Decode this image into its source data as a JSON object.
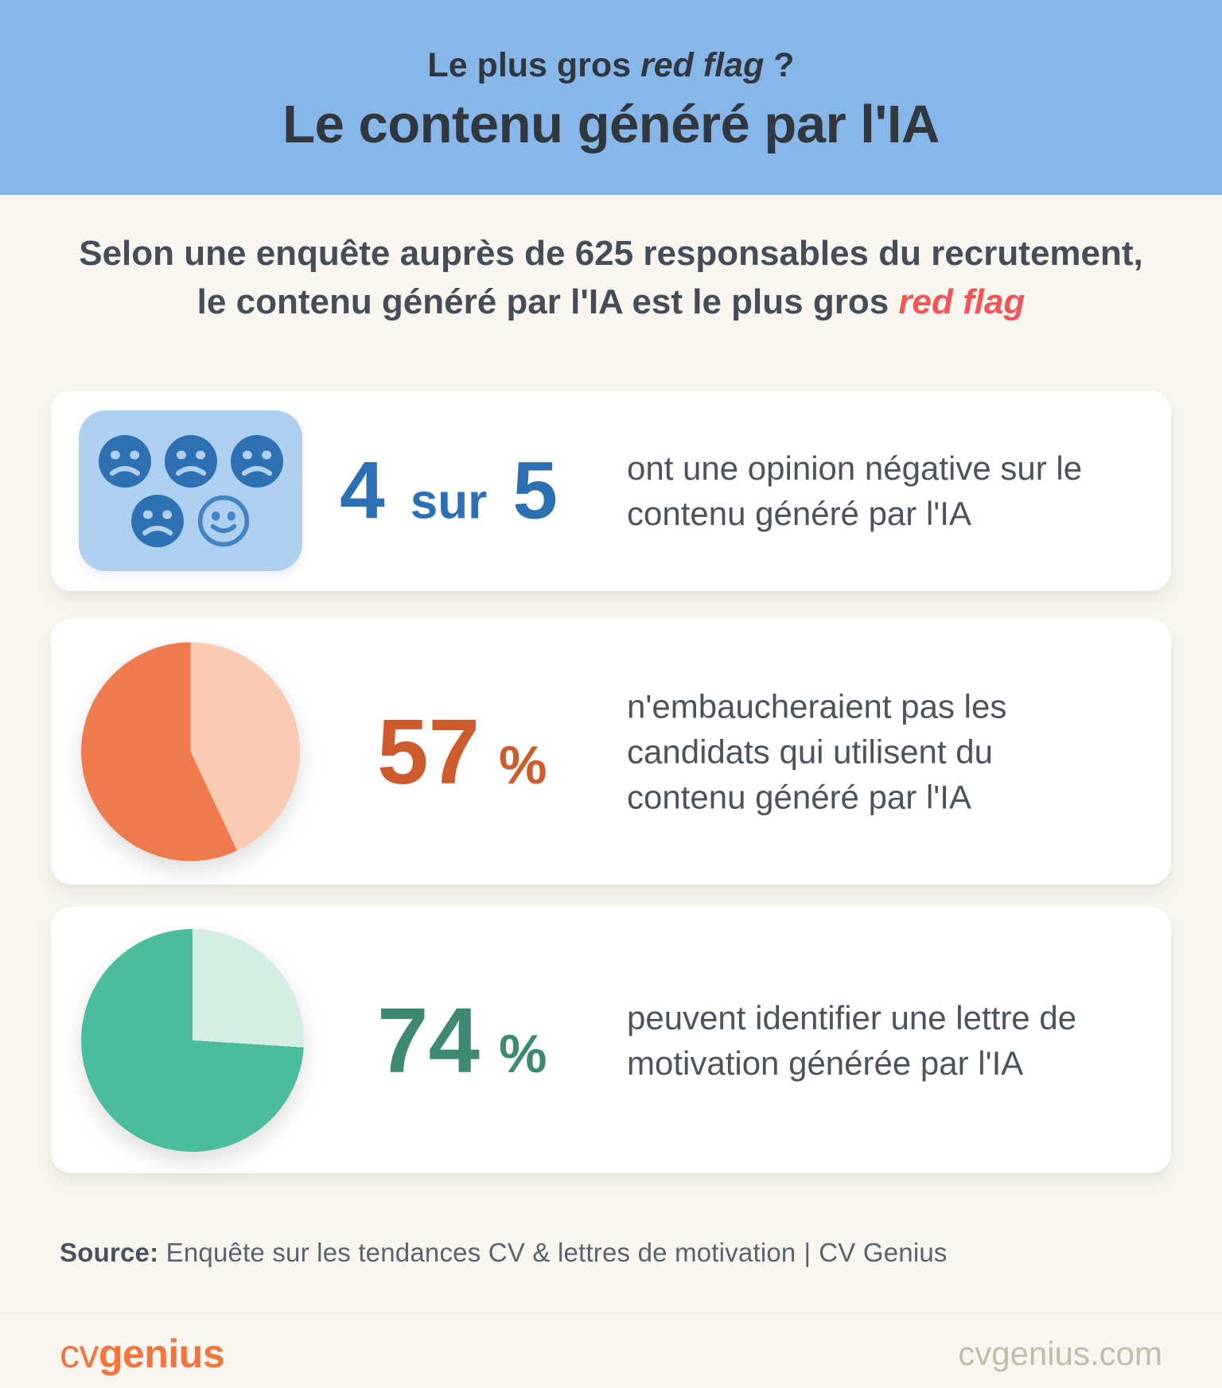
{
  "header": {
    "kicker_pre": "Le plus gros ",
    "kicker_italic": "red flag",
    "kicker_post": " ?",
    "title": "Le contenu généré par l'IA"
  },
  "intro": {
    "line1": "Selon une enquête auprès de 625 responsables du recrutement,",
    "line2_pre": "le contenu généré par l'IA est le plus gros ",
    "line2_accent": "red flag"
  },
  "stats": [
    {
      "value_a": "4",
      "connector": "sur",
      "value_b": "5",
      "lines": [
        "ont une opinion négative sur le",
        "contenu généré par l'IA"
      ]
    },
    {
      "value": "57",
      "unit": "%",
      "lines": [
        "n'embaucheraient pas les",
        "candidats qui utilisent du",
        "contenu généré par l'IA"
      ]
    },
    {
      "value": "74",
      "unit": "%",
      "lines": [
        "peuvent identifier une lettre de",
        "motivation générée par l'IA"
      ]
    }
  ],
  "pictogram": {
    "total_faces": 5,
    "negative_faces": 4,
    "positive_faces": 1,
    "rows": [
      [
        "sad",
        "sad",
        "sad"
      ],
      [
        "sad",
        "happy"
      ]
    ],
    "panel_color": "#AFD0F1",
    "sad_fill": "#2E71B3",
    "happy_stroke": "#4283C4"
  },
  "chart_data": [
    {
      "type": "pie",
      "title": "57 %",
      "values": [
        57,
        43
      ],
      "value_labels": [
        "57 % n'embaucheraient pas les candidats qui utilisent du contenu généré par l'IA",
        "reste"
      ],
      "colors": [
        "#EE7A4D",
        "#F9CBB2"
      ],
      "start_angle_deg": 0,
      "remainder_slice_position": "clockwise from 12 o'clock"
    },
    {
      "type": "pie",
      "title": "74 %",
      "values": [
        74,
        26
      ],
      "value_labels": [
        "74 % peuvent identifier une lettre de motivation générée par l'IA",
        "reste"
      ],
      "colors": [
        "#4CBD9C",
        "#D4EEE4"
      ],
      "start_angle_deg": 0,
      "remainder_slice_position": "clockwise from 12 o'clock"
    }
  ],
  "source": {
    "label": "Source:",
    "text": "Enquête sur les tendances CV & lettres de motivation",
    "divider": "|",
    "attribution": "CV Genius"
  },
  "footer": {
    "logo_light": "cv",
    "logo_bold": "genius",
    "website": "cvgenius.com"
  },
  "colors": {
    "header_bg": "#87B6E9",
    "page_bg": "#F8F6EF",
    "card_bg": "#FFFFFF",
    "heading_text": "#30373E",
    "body_text": "#4A545E",
    "red_accent": "#F15558",
    "blue_stat": "#2D6FB3",
    "orange_stat": "#CE5B2B",
    "teal_stat": "#3D8973",
    "brand_orange": "#F2753E",
    "website_text": "#C2BDA4"
  }
}
